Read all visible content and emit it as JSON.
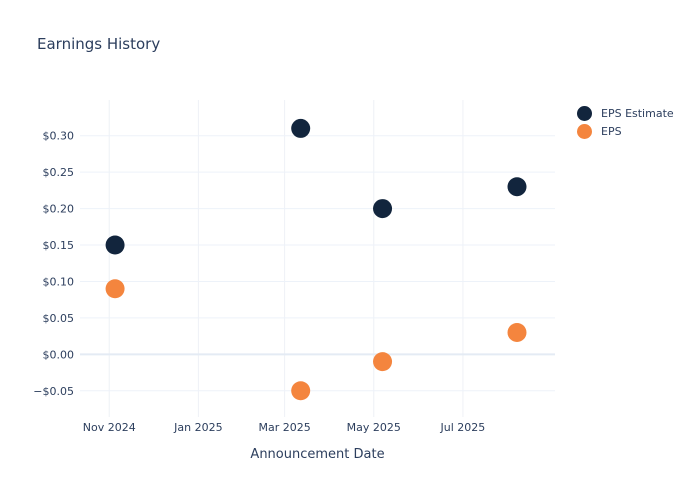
{
  "page": {
    "background": "#ffffff"
  },
  "chart_data": {
    "type": "scatter",
    "title": "Earnings History",
    "xlabel": "Announcement Date",
    "ylabel": "",
    "x_type": "date",
    "x_range": [
      "2024-10-12",
      "2025-09-02"
    ],
    "ylim": [
      -0.086,
      0.349
    ],
    "grid": true,
    "legend_position": "top-right",
    "x_ticks": [
      {
        "date": "2024-11-01",
        "label": "Nov 2024"
      },
      {
        "date": "2025-01-01",
        "label": "Jan 2025"
      },
      {
        "date": "2025-03-01",
        "label": "Mar 2025"
      },
      {
        "date": "2025-05-01",
        "label": "May 2025"
      },
      {
        "date": "2025-07-01",
        "label": "Jul 2025"
      }
    ],
    "y_ticks": [
      {
        "value": 0.3,
        "label": "$0.30"
      },
      {
        "value": 0.25,
        "label": "$0.25"
      },
      {
        "value": 0.2,
        "label": "$0.20"
      },
      {
        "value": 0.15,
        "label": "$0.15"
      },
      {
        "value": 0.1,
        "label": "$0.10"
      },
      {
        "value": 0.05,
        "label": "$0.05"
      },
      {
        "value": 0.0,
        "label": "$0.00"
      },
      {
        "value": -0.05,
        "label": "−$0.05"
      }
    ],
    "series": [
      {
        "name": "EPS Estimate",
        "color": "#12253d",
        "points": [
          {
            "x": "2024-11-05",
            "y": 0.15
          },
          {
            "x": "2025-03-12",
            "y": 0.31
          },
          {
            "x": "2025-05-07",
            "y": 0.2
          },
          {
            "x": "2025-08-07",
            "y": 0.23
          }
        ]
      },
      {
        "name": "EPS",
        "color": "#f4853e",
        "points": [
          {
            "x": "2024-11-05",
            "y": 0.09
          },
          {
            "x": "2025-03-12",
            "y": -0.05
          },
          {
            "x": "2025-05-07",
            "y": -0.01
          },
          {
            "x": "2025-08-07",
            "y": 0.03
          }
        ]
      }
    ],
    "styles": {
      "grid_color": "#edf2f9",
      "vgrid_color": "#eef1f6",
      "zero_line_color": "#e4ebf4",
      "text_color": "#2c3e5d"
    }
  }
}
